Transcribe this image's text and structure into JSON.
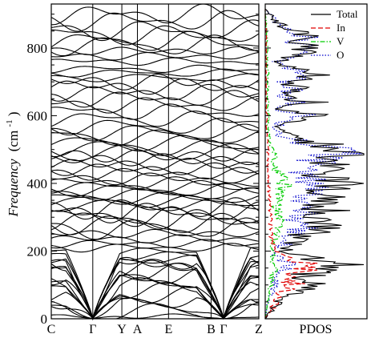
{
  "chart_data": [
    {
      "type": "line",
      "subtype": "phonon-dispersion",
      "ylabel_main": "Frequency",
      "ylabel_unit": "(cm",
      "ylabel_exp": "-1",
      "ylabel_close": ")",
      "ylim": [
        0,
        930
      ],
      "yticks": [
        0,
        200,
        400,
        600,
        800
      ],
      "k_points": [
        {
          "label": "C",
          "k": 0.0
        },
        {
          "label": "Γ",
          "k": 0.2
        },
        {
          "label": "Y",
          "k": 0.34
        },
        {
          "label": "A",
          "k": 0.415
        },
        {
          "label": "E",
          "k": 0.565
        },
        {
          "label": "B",
          "k": 0.77
        },
        {
          "label": "Γ",
          "k": 0.83
        },
        {
          "label": "Z",
          "k": 1.0
        }
      ],
      "acoustic_cusps_at": [
        0.2,
        0.83
      ],
      "band_levels": [
        8,
        22,
        40,
        55,
        70,
        84,
        100,
        112,
        126,
        140,
        150,
        160,
        168,
        176,
        186,
        198,
        210,
        222,
        236,
        252,
        266,
        280,
        292,
        302,
        314,
        326,
        336,
        346,
        356,
        368,
        380,
        390,
        402,
        414,
        428,
        442,
        456,
        470,
        482,
        492,
        504,
        518,
        536,
        550,
        568,
        590,
        612,
        632,
        650,
        668,
        686,
        700,
        712,
        726,
        738,
        760,
        776,
        792,
        808,
        820,
        838,
        852,
        880,
        900
      ]
    },
    {
      "type": "line",
      "subtype": "density-of-states",
      "xlabel": "PDOS",
      "series": [
        {
          "name": "Total",
          "color": "#000000",
          "dash": "solid"
        },
        {
          "name": "In",
          "color": "#e00000",
          "dash": "dashed"
        },
        {
          "name": "V",
          "color": "#00cc00",
          "dash": "dash-dot"
        },
        {
          "name": "O",
          "color": "#0000cc",
          "dash": "dotted"
        }
      ],
      "freq": [
        0,
        20,
        40,
        60,
        80,
        100,
        120,
        140,
        160,
        180,
        200,
        220,
        240,
        260,
        280,
        300,
        320,
        340,
        360,
        380,
        400,
        420,
        440,
        460,
        480,
        500,
        520,
        540,
        560,
        580,
        600,
        620,
        640,
        660,
        680,
        700,
        720,
        740,
        760,
        780,
        800,
        820,
        840,
        860,
        880,
        900,
        915
      ],
      "values": {
        "Total": [
          0.0,
          0.05,
          0.12,
          0.2,
          0.3,
          0.45,
          0.35,
          0.55,
          0.8,
          0.45,
          0.2,
          0.35,
          0.3,
          0.55,
          0.6,
          0.5,
          0.65,
          0.55,
          0.6,
          0.7,
          0.85,
          0.6,
          0.55,
          0.65,
          0.75,
          0.95,
          0.5,
          0.25,
          0.15,
          0.2,
          0.55,
          0.1,
          0.45,
          0.15,
          0.35,
          0.2,
          0.55,
          0.25,
          0.15,
          0.3,
          0.45,
          0.3,
          0.5,
          0.2,
          0.1,
          0.05,
          0.0
        ],
        "In": [
          0.0,
          0.04,
          0.1,
          0.15,
          0.2,
          0.3,
          0.2,
          0.35,
          0.5,
          0.3,
          0.1,
          0.08,
          0.06,
          0.05,
          0.06,
          0.05,
          0.06,
          0.05,
          0.04,
          0.04,
          0.04,
          0.03,
          0.03,
          0.03,
          0.03,
          0.03,
          0.02,
          0.02,
          0.01,
          0.01,
          0.02,
          0.01,
          0.01,
          0.01,
          0.01,
          0.01,
          0.01,
          0.01,
          0.01,
          0.01,
          0.01,
          0.01,
          0.01,
          0.01,
          0.0,
          0.0,
          0.0
        ],
        "V": [
          0.0,
          0.01,
          0.02,
          0.03,
          0.04,
          0.06,
          0.08,
          0.1,
          0.1,
          0.06,
          0.08,
          0.06,
          0.1,
          0.12,
          0.15,
          0.13,
          0.12,
          0.11,
          0.14,
          0.18,
          0.2,
          0.15,
          0.11,
          0.09,
          0.1,
          0.08,
          0.06,
          0.05,
          0.03,
          0.03,
          0.04,
          0.02,
          0.03,
          0.02,
          0.03,
          0.02,
          0.03,
          0.02,
          0.02,
          0.02,
          0.02,
          0.02,
          0.02,
          0.01,
          0.01,
          0.0,
          0.0
        ],
        "O": [
          0.0,
          0.01,
          0.02,
          0.04,
          0.07,
          0.1,
          0.1,
          0.15,
          0.25,
          0.15,
          0.06,
          0.2,
          0.18,
          0.35,
          0.4,
          0.3,
          0.45,
          0.38,
          0.4,
          0.45,
          0.55,
          0.4,
          0.38,
          0.5,
          0.6,
          0.8,
          0.4,
          0.2,
          0.11,
          0.16,
          0.45,
          0.08,
          0.4,
          0.12,
          0.3,
          0.17,
          0.5,
          0.22,
          0.12,
          0.27,
          0.42,
          0.28,
          0.47,
          0.19,
          0.09,
          0.05,
          0.0
        ]
      }
    }
  ]
}
